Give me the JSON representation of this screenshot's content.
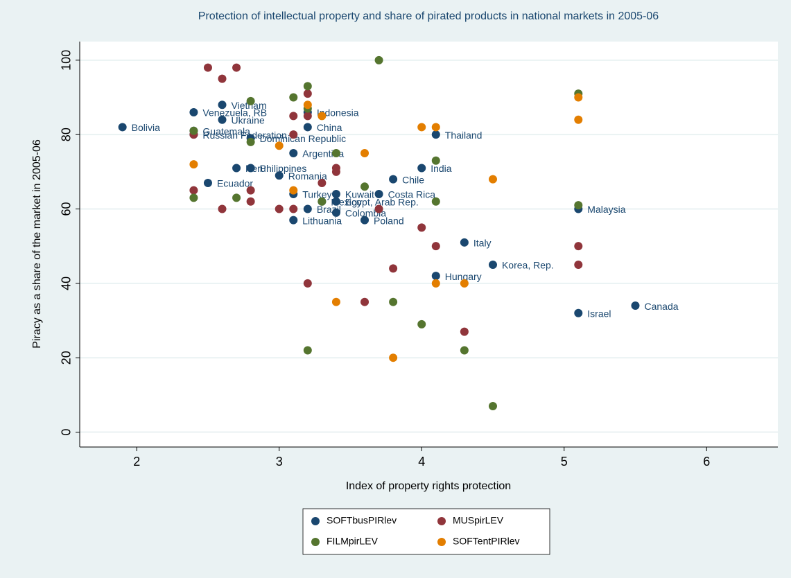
{
  "chart_data": {
    "type": "scatter",
    "title": "Protection of intellectual property and share of pirated products in national markets in 2005-06",
    "xlabel": "Index of property rights protection",
    "ylabel": "Piracy as a share of the market in 2005-06",
    "xlim": [
      1.6,
      6.5
    ],
    "xticks": [
      2,
      3,
      4,
      5,
      6
    ],
    "ylim": [
      -4,
      105
    ],
    "yticks": [
      0,
      20,
      40,
      60,
      80,
      100
    ],
    "grid": true,
    "legend": "bottom",
    "series": [
      {
        "name": "SOFTbusPIRlev",
        "color": "#1a476f",
        "x": [
          1.9,
          2.4,
          2.6,
          2.6,
          2.4,
          2.4,
          2.8,
          2.7,
          2.8,
          2.5,
          3.0,
          3.1,
          3.2,
          3.2,
          3.1,
          3.2,
          3.1,
          3.4,
          3.3,
          3.4,
          3.4,
          3.6,
          3.8,
          3.7,
          4.0,
          4.1,
          4.3,
          4.1,
          4.5,
          5.1,
          5.1,
          5.5
        ],
        "values": [
          82,
          86,
          88,
          84,
          81,
          80,
          79,
          71,
          71,
          67,
          69,
          75,
          82,
          86,
          64,
          60,
          57,
          64,
          62,
          62,
          59,
          57,
          68,
          64,
          71,
          80,
          51,
          42,
          45,
          60,
          32,
          34
        ],
        "labels": [
          "Bolivia",
          "Venezuela, RB",
          "Vietnam",
          "Ukraine",
          "Guatemala",
          "Russian Federation",
          "Dominican Republic",
          "Peru",
          "Philippines",
          "Ecuador",
          "Romania",
          "Argentina",
          "China",
          "Indonesia",
          "Turkey",
          "Brazil",
          "Lithuania",
          "Kuwait",
          "Mexico",
          "Egypt, Arab Rep.",
          "Colombia",
          "Poland",
          "Chile",
          "Costa Rica",
          "India",
          "Thailand",
          "Italy",
          "Hungary",
          "Korea, Rep.",
          "Malaysia",
          "Israel",
          "Canada"
        ]
      },
      {
        "name": "MUSpirLEV",
        "color": "#90353b",
        "x": [
          2.5,
          2.6,
          2.7,
          3.2,
          3.1,
          3.2,
          2.4,
          3.1,
          3.4,
          3.4,
          3.3,
          2.4,
          2.8,
          2.8,
          2.6,
          3.0,
          3.1,
          3.7,
          4.0,
          4.1,
          3.8,
          3.2,
          3.6,
          4.3,
          5.1,
          5.1
        ],
        "values": [
          98,
          95,
          98,
          91,
          85,
          85,
          80,
          80,
          71,
          70,
          67,
          65,
          65,
          62,
          60,
          60,
          60,
          60,
          55,
          50,
          44,
          40,
          35,
          27,
          50,
          45
        ]
      },
      {
        "name": "FILMpirLEV",
        "color": "#55752f",
        "x": [
          3.7,
          2.8,
          3.1,
          3.2,
          3.2,
          2.4,
          2.8,
          3.4,
          4.1,
          3.6,
          2.4,
          2.7,
          3.3,
          4.1,
          5.1,
          5.1,
          3.8,
          4.0,
          3.2,
          4.3,
          4.5
        ],
        "values": [
          100,
          89,
          90,
          93,
          87,
          81,
          78,
          75,
          73,
          66,
          63,
          63,
          62,
          62,
          91,
          61,
          35,
          29,
          22,
          22,
          7
        ]
      },
      {
        "name": "SOFTentPIRlev",
        "color": "#e37e00",
        "x": [
          3.2,
          3.3,
          3.0,
          2.4,
          3.6,
          4.0,
          4.1,
          3.1,
          4.5,
          4.1,
          4.3,
          3.4,
          3.8,
          5.1,
          5.1
        ],
        "values": [
          88,
          85,
          77,
          72,
          75,
          82,
          82,
          65,
          68,
          40,
          40,
          35,
          20,
          90,
          84
        ]
      }
    ]
  }
}
